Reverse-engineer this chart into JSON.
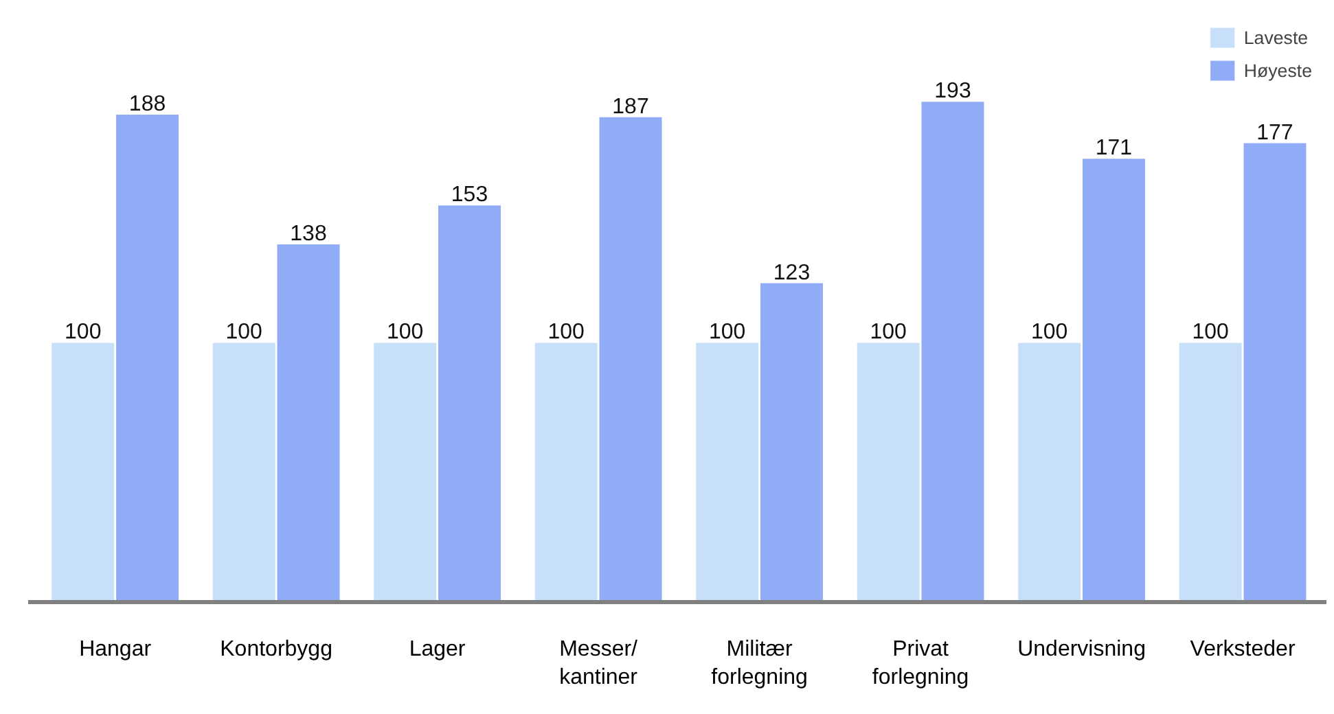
{
  "chart_data": {
    "type": "bar",
    "categories": [
      "Hangar",
      "Kontorbygg",
      "Lager",
      "Messer/\nkantiner",
      "Militær\nforlegning",
      "Privat\nforlegning",
      "Undervisning",
      "Verksteder"
    ],
    "series": [
      {
        "name": "Laveste",
        "color": "#c8dffa",
        "values": [
          100,
          100,
          100,
          100,
          100,
          100,
          100,
          100
        ]
      },
      {
        "name": "Høyeste",
        "color": "#91acf7",
        "values": [
          188,
          138,
          153,
          187,
          123,
          193,
          171,
          177
        ]
      }
    ],
    "data_labels": true,
    "legend": "top right",
    "grid": false,
    "tick_labels": "x"
  }
}
